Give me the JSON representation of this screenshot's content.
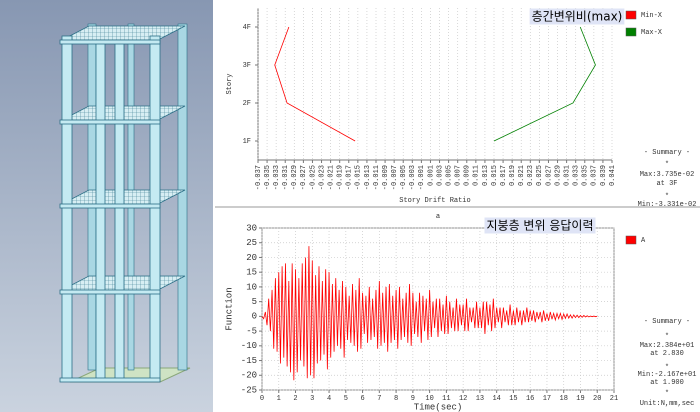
{
  "chart_data": [
    {
      "type": "line",
      "ylabel": "Story",
      "xlabel": "Story Drift Ratio",
      "annotation": "층간변위비(max)",
      "categories": [
        "1F",
        "2F",
        "3F",
        "4F"
      ],
      "series": [
        {
          "name": "Min-X",
          "color": "#ff0000",
          "values": [
            -0.0156,
            -0.0306,
            -0.03331,
            -0.0302
          ]
        },
        {
          "name": "Max-X",
          "color": "#008000",
          "values": [
            0.015,
            0.0324,
            0.03735,
            0.034
          ]
        }
      ],
      "xlim": [
        -0.037,
        0.041
      ],
      "xticks": [
        -0.037,
        -0.035,
        -0.033,
        -0.031,
        -0.029,
        -0.027,
        -0.025,
        -0.023,
        -0.021,
        -0.019,
        -0.017,
        -0.015,
        -0.013,
        -0.011,
        -0.009,
        -0.007,
        -0.005,
        -0.003,
        -0.001,
        0.001,
        0.003,
        0.005,
        0.007,
        0.009,
        0.011,
        0.013,
        0.015,
        0.017,
        0.019,
        0.021,
        0.023,
        0.025,
        0.027,
        0.029,
        0.031,
        0.033,
        0.035,
        0.037,
        0.039,
        0.041
      ],
      "grid": true,
      "summary": [
        "- Summary -",
        "*",
        "Max:3.735e-02",
        "at 3F",
        "*",
        "Min:-3.331e-02"
      ]
    },
    {
      "type": "line",
      "title": "a",
      "ylabel": "Function",
      "xlabel": "Time(sec)",
      "annotation": "지붕층 변위 응답이력",
      "x": [
        0,
        0.1,
        0.2,
        0.3,
        0.4,
        0.5,
        0.6,
        0.7,
        0.8,
        0.9,
        1,
        1.1,
        1.2,
        1.3,
        1.4,
        1.5,
        1.6,
        1.7,
        1.8,
        1.9,
        2,
        2.1,
        2.2,
        2.3,
        2.4,
        2.5,
        2.6,
        2.7,
        2.8,
        2.9,
        3,
        3.1,
        3.2,
        3.3,
        3.4,
        3.5,
        3.6,
        3.7,
        3.8,
        3.9,
        4,
        4.1,
        4.2,
        4.3,
        4.4,
        4.5,
        4.6,
        4.7,
        4.8,
        4.9,
        5,
        5.1,
        5.2,
        5.3,
        5.4,
        5.5,
        5.6,
        5.7,
        5.8,
        5.9,
        6,
        6.1,
        6.2,
        6.3,
        6.4,
        6.5,
        6.6,
        6.7,
        6.8,
        6.9,
        7,
        7.1,
        7.2,
        7.3,
        7.4,
        7.5,
        7.6,
        7.7,
        7.8,
        7.9,
        8,
        8.1,
        8.2,
        8.3,
        8.4,
        8.5,
        8.6,
        8.7,
        8.8,
        8.9,
        9,
        9.1,
        9.2,
        9.3,
        9.4,
        9.5,
        9.6,
        9.7,
        9.8,
        9.9,
        10,
        10.1,
        10.2,
        10.3,
        10.4,
        10.5,
        10.6,
        10.7,
        10.8,
        10.9,
        11,
        11.1,
        11.2,
        11.3,
        11.4,
        11.5,
        11.6,
        11.7,
        11.8,
        11.9,
        12,
        12.1,
        12.2,
        12.3,
        12.4,
        12.5,
        12.6,
        12.7,
        12.8,
        12.9,
        13,
        13.1,
        13.2,
        13.3,
        13.4,
        13.5,
        13.6,
        13.7,
        13.8,
        13.9,
        14,
        14.1,
        14.2,
        14.3,
        14.4,
        14.5,
        14.6,
        14.7,
        14.8,
        14.9,
        15,
        15.1,
        15.2,
        15.3,
        15.4,
        15.5,
        15.6,
        15.7,
        15.8,
        15.9,
        16,
        16.1,
        16.2,
        16.3,
        16.4,
        16.5,
        16.6,
        16.7,
        16.8,
        16.9,
        17,
        17.1,
        17.2,
        17.3,
        17.4,
        17.5,
        17.6,
        17.7,
        17.8,
        17.9,
        18,
        18.1,
        18.2,
        18.3,
        18.4,
        18.5,
        18.6,
        18.7,
        18.8,
        18.9,
        19,
        19.1,
        19.2,
        19.3,
        19.4,
        19.5,
        19.6,
        19.7,
        19.8,
        19.9,
        20
      ],
      "series": [
        {
          "name": "A",
          "color": "#ff0000",
          "values": [
            0,
            -0.8,
            1.5,
            -3,
            6,
            -5,
            9,
            -11,
            13,
            -12,
            15,
            -16,
            17,
            -14,
            18,
            -17,
            12,
            -19,
            18,
            -21.67,
            16,
            -19,
            13,
            -15,
            18,
            -17,
            20,
            -21,
            23.84,
            -20,
            19,
            -21,
            14,
            -16,
            17,
            -15,
            12,
            -13,
            16,
            -18,
            15,
            -14,
            11,
            -12,
            13,
            -10,
            9,
            -11,
            12,
            -14,
            10,
            -8,
            7,
            -9,
            11,
            -10,
            9,
            -12,
            13,
            -11,
            8,
            -6,
            7,
            -9,
            10,
            -8,
            6,
            -7,
            9,
            -11,
            12,
            -10,
            8,
            -9,
            10,
            -12,
            11,
            -9,
            7,
            -8,
            9,
            -11,
            10,
            -8,
            6,
            -7,
            8,
            -9,
            11,
            -10,
            8,
            -6,
            5,
            -7,
            8,
            -9,
            7,
            -5,
            6,
            -8,
            9,
            -7,
            5,
            -4,
            6,
            -7,
            6,
            -5,
            4,
            -6,
            7,
            -6,
            5,
            -4,
            3,
            -5,
            6,
            -5,
            4,
            -3,
            4,
            -5,
            6,
            -5,
            3,
            -2,
            3,
            -4,
            5,
            -4,
            3,
            -4,
            5,
            -6,
            5,
            -3,
            4,
            -5,
            6,
            -4,
            3,
            -2,
            3,
            -4,
            3,
            -2,
            2,
            -3,
            4,
            -3,
            2,
            -3,
            3,
            -2,
            2,
            -3,
            2,
            -2,
            3,
            -2,
            2,
            -1.5,
            2,
            -2,
            1.5,
            -1,
            1.5,
            -2,
            2,
            -1.5,
            1,
            -1.5,
            1.5,
            -1,
            1,
            -1.2,
            1,
            -0.8,
            1,
            -1,
            0.8,
            -0.7,
            0.8,
            -0.6,
            0.5,
            -0.6,
            0.5,
            -0.4,
            0.4,
            -0.4,
            0.3,
            -0.3,
            0.3,
            -0.2,
            0.2,
            -0.2,
            0.1,
            -0.1,
            0.1,
            -0.1,
            0
          ]
        }
      ],
      "xlim": [
        0,
        21
      ],
      "xticks": [
        0,
        1,
        2,
        3,
        4,
        5,
        6,
        7,
        8,
        9,
        10,
        11,
        12,
        13,
        14,
        15,
        16,
        17,
        18,
        19,
        20,
        21
      ],
      "ylim": [
        -25,
        30
      ],
      "yticks": [
        -25,
        -20,
        -15,
        -10,
        -5,
        0,
        5,
        10,
        15,
        20,
        25,
        30
      ],
      "grid": true,
      "summary": [
        "- Summary -",
        "*",
        "Max:2.384e+01",
        "at 2.830",
        "*",
        "Min:-2.167e+01",
        "at 1.900",
        "*",
        "Unit:N,mm,sec"
      ]
    }
  ]
}
